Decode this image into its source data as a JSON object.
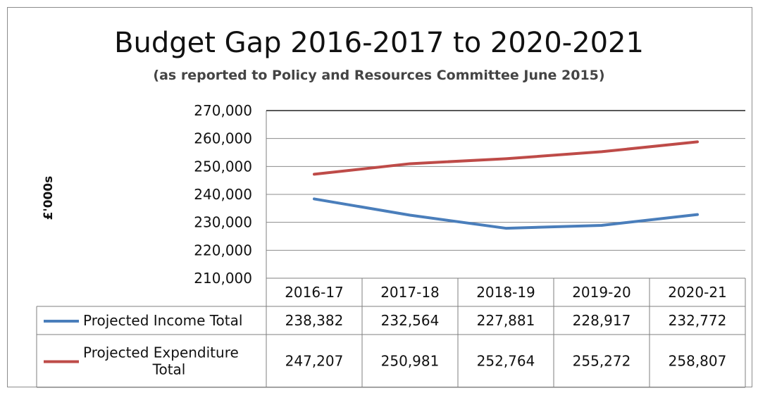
{
  "chart_data": {
    "type": "line",
    "title": "Budget Gap 2016-2017 to 2020-2021",
    "subtitle": "(as reported to Policy and Resources Committee June 2015)",
    "ylabel": "£'000s",
    "xlabel": "",
    "ylim": [
      210000,
      270000
    ],
    "yticks": [
      210000,
      220000,
      230000,
      240000,
      250000,
      260000,
      270000
    ],
    "ytick_labels": [
      "210,000",
      "220,000",
      "230,000",
      "240,000",
      "250,000",
      "260,000",
      "270,000"
    ],
    "grid": true,
    "legend": "data-table",
    "categories": [
      "2016-17",
      "2017-18",
      "2018-19",
      "2019-20",
      "2020-21"
    ],
    "series": [
      {
        "name_lines": [
          "Projected Income Total"
        ],
        "color": "#4a7ebb",
        "values": [
          238382,
          232564,
          227881,
          228917,
          232772
        ],
        "value_labels": [
          "238,382",
          "232,564",
          "227,881",
          "228,917",
          "232,772"
        ]
      },
      {
        "name_lines": [
          "Projected Expenditure",
          "Total"
        ],
        "color": "#be4b48",
        "values": [
          247207,
          250981,
          252764,
          255272,
          258807
        ],
        "value_labels": [
          "247,207",
          "250,981",
          "252,764",
          "255,272",
          "258,807"
        ]
      }
    ]
  }
}
